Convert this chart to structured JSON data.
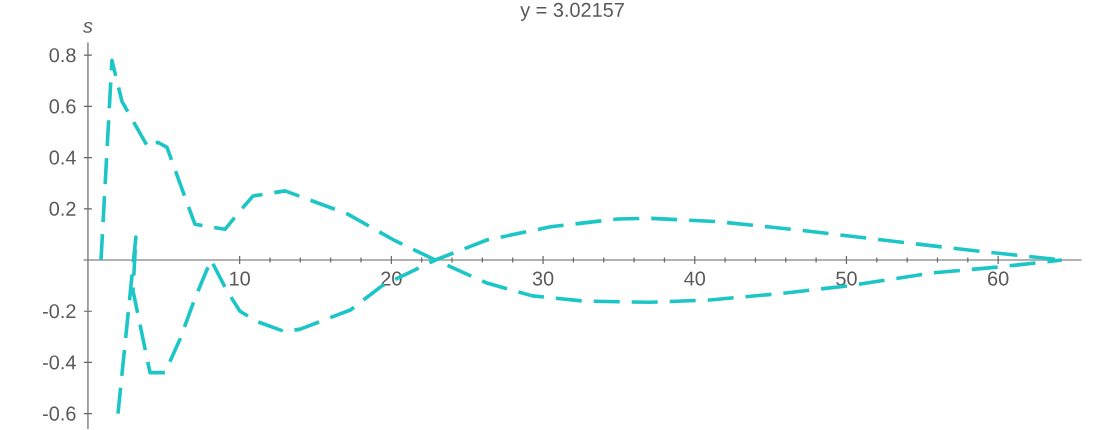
{
  "chart_data": {
    "type": "line",
    "title": "y = 3.02157",
    "ylabel": "s",
    "xlim": [
      -0.3,
      65.5
    ],
    "ylim": [
      -0.66,
      0.85
    ],
    "xticks": [
      10,
      20,
      30,
      40,
      50,
      60
    ],
    "yticks": [
      -0.6,
      -0.4,
      -0.2,
      0.2,
      0.4,
      0.6,
      0.8
    ],
    "line_style": "dashed",
    "series": [
      {
        "color": "#1cc6c6",
        "x": [
          0.86,
          1.58,
          2.24,
          3.96,
          4.61,
          5.21,
          6.06,
          7.05,
          9.03,
          10.15,
          10.88,
          13.0,
          17.1,
          20.1,
          22.9,
          26.3,
          29.3,
          32.6,
          37.0,
          41.0,
          45.8,
          50.2,
          55.7,
          60.1,
          64.2
        ],
        "values": [
          0,
          0.78,
          0.62,
          0.44,
          0.46,
          0.44,
          0.3,
          0.14,
          0.12,
          0.2,
          0.25,
          0.27,
          0.18,
          0.08,
          0,
          -0.09,
          -0.14,
          -0.16,
          -0.165,
          -0.156,
          -0.13,
          -0.1,
          -0.05,
          -0.027,
          0
        ]
      },
      {
        "color": "#1cc6c6",
        "x": [
          1.98,
          3.16,
          2.97,
          4.09,
          5.08,
          6.06,
          7.05,
          8.11,
          9.16,
          10.02,
          11.14,
          13.0,
          14.0,
          17.3,
          19.4,
          22.9,
          26.3,
          30.5,
          34.9,
          37.0,
          41.5,
          46.9,
          52.4,
          57.9,
          64.2
        ],
        "values": [
          -0.6,
          0.09,
          -0.12,
          -0.44,
          -0.44,
          -0.31,
          -0.15,
          0,
          -0.12,
          -0.2,
          -0.24,
          -0.28,
          -0.27,
          -0.195,
          -0.1,
          0,
          0.078,
          0.13,
          0.16,
          0.163,
          0.15,
          0.117,
          0.078,
          0.04,
          0
        ]
      }
    ]
  }
}
